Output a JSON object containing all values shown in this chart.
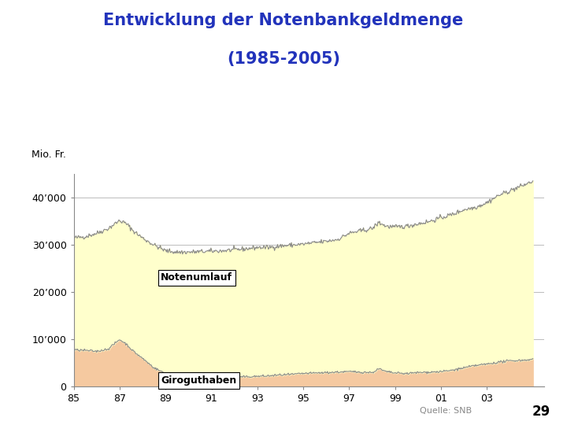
{
  "title_line1": "Entwicklung der Notenbankgeldmenge",
  "title_line2": "(1985-2005)",
  "title_color": "#2233BB",
  "ylabel": "Mio. Fr.",
  "yticks": [
    0,
    10000,
    20000,
    30000,
    40000
  ],
  "ytick_labels": [
    "0",
    "10’000",
    "20’000",
    "30’000",
    "40’000"
  ],
  "xtick_positions": [
    1985,
    1987,
    1989,
    1991,
    1993,
    1995,
    1997,
    1999,
    2001,
    2003
  ],
  "xtick_labels": [
    "85",
    "87",
    "89",
    "91",
    "93",
    "95",
    "97",
    "99",
    "01",
    "03"
  ],
  "note_label": "Notenumlauf",
  "giro_label": "Giroguthaben",
  "source_text": "Quelle: SNB",
  "page_num": "29",
  "note_color": "#FFFFCC",
  "giro_color": "#F5C9A0",
  "line_color": "#888888",
  "bg_color": "#FFFFFF",
  "ylim": [
    0,
    45000
  ],
  "years_x": [
    1985.0,
    1985.5,
    1986.0,
    1986.5,
    1987.0,
    1987.3,
    1987.6,
    1988.0,
    1988.5,
    1989.0,
    1989.5,
    1990.0,
    1990.5,
    1991.0,
    1991.5,
    1992.0,
    1992.5,
    1993.0,
    1993.5,
    1994.0,
    1994.5,
    1995.0,
    1995.5,
    1996.0,
    1996.5,
    1997.0,
    1997.5,
    1998.0,
    1998.3,
    1998.6,
    1999.0,
    1999.5,
    2000.0,
    2000.5,
    2001.0,
    2001.5,
    2002.0,
    2002.5,
    2003.0,
    2003.5,
    2004.0,
    2004.5,
    2005.0
  ],
  "total_values": [
    31500,
    31800,
    32500,
    33500,
    35200,
    34500,
    33000,
    31500,
    30000,
    28800,
    28500,
    28500,
    28600,
    28700,
    28800,
    29000,
    29200,
    29500,
    29500,
    29800,
    30000,
    30200,
    30500,
    30800,
    31200,
    32500,
    33000,
    33500,
    34800,
    34000,
    33800,
    34000,
    34500,
    35000,
    35800,
    36500,
    37500,
    38000,
    39000,
    40500,
    41500,
    42500,
    43500
  ],
  "giro_values": [
    7800,
    7700,
    7500,
    8000,
    10000,
    9000,
    7500,
    6000,
    4000,
    2800,
    2200,
    2000,
    1900,
    1800,
    1900,
    2000,
    2100,
    2200,
    2300,
    2500,
    2600,
    2800,
    2900,
    3000,
    3100,
    3200,
    3100,
    3000,
    3800,
    3200,
    2900,
    2800,
    3000,
    3100,
    3200,
    3500,
    4000,
    4500,
    4800,
    5200,
    5500,
    5600,
    5800
  ]
}
